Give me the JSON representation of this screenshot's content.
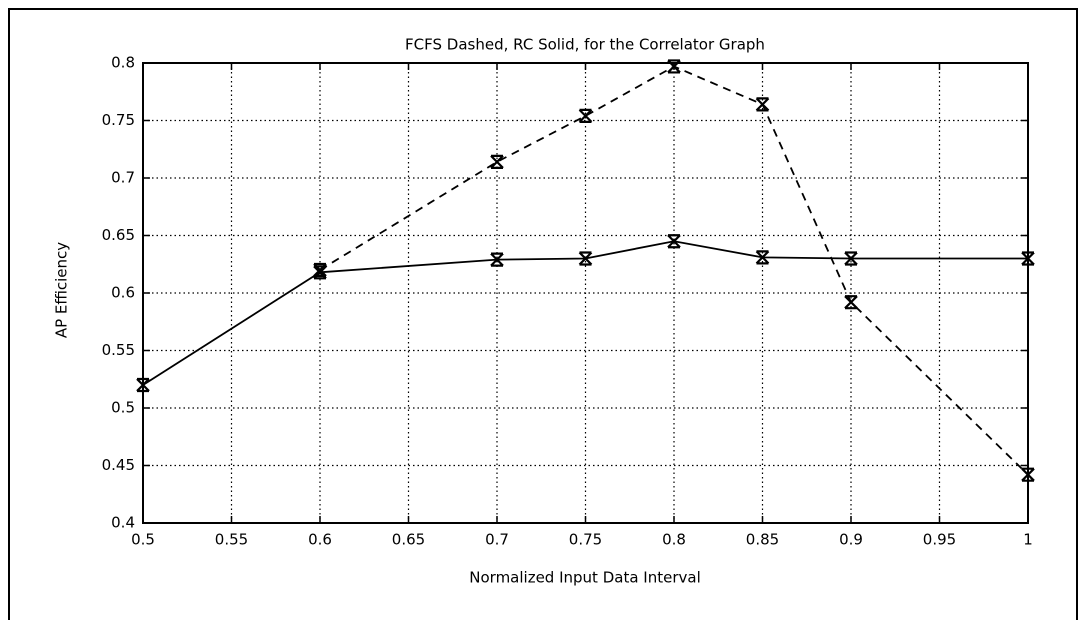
{
  "chart_data": {
    "type": "line",
    "title": "FCFS Dashed, RC Solid, for the Correlator Graph",
    "x_label": "Normalized Input Data Interval",
    "y_label": "AP Efficiency",
    "series": [
      {
        "color": "#000000",
        "dash": "solid",
        "x": [
          0.5,
          0.6,
          0.7,
          0.75,
          0.8,
          0.85,
          0.9,
          1
        ],
        "values": [
          0.52,
          0.618,
          0.629,
          0.63,
          0.645,
          0.631,
          0.63,
          0.63
        ]
      },
      {
        "color": "#000000",
        "dash": "dashed",
        "x": [
          0.6,
          0.7,
          0.75,
          0.8,
          0.85,
          0.9,
          1
        ],
        "values": [
          0.62,
          0.714,
          0.754,
          0.797,
          0.764,
          0.592,
          0.442
        ]
      }
    ],
    "xlim": [
      0.5,
      1
    ],
    "xticks": [
      0.5,
      0.55,
      0.6,
      0.65,
      0.7,
      0.75,
      0.8,
      0.85,
      0.9,
      0.95,
      1
    ],
    "ylim": [
      0.4,
      0.8
    ],
    "yticks": [
      0.4,
      0.45,
      0.5,
      0.55,
      0.6,
      0.65,
      0.7,
      0.75,
      0.8
    ],
    "grid": true
  }
}
